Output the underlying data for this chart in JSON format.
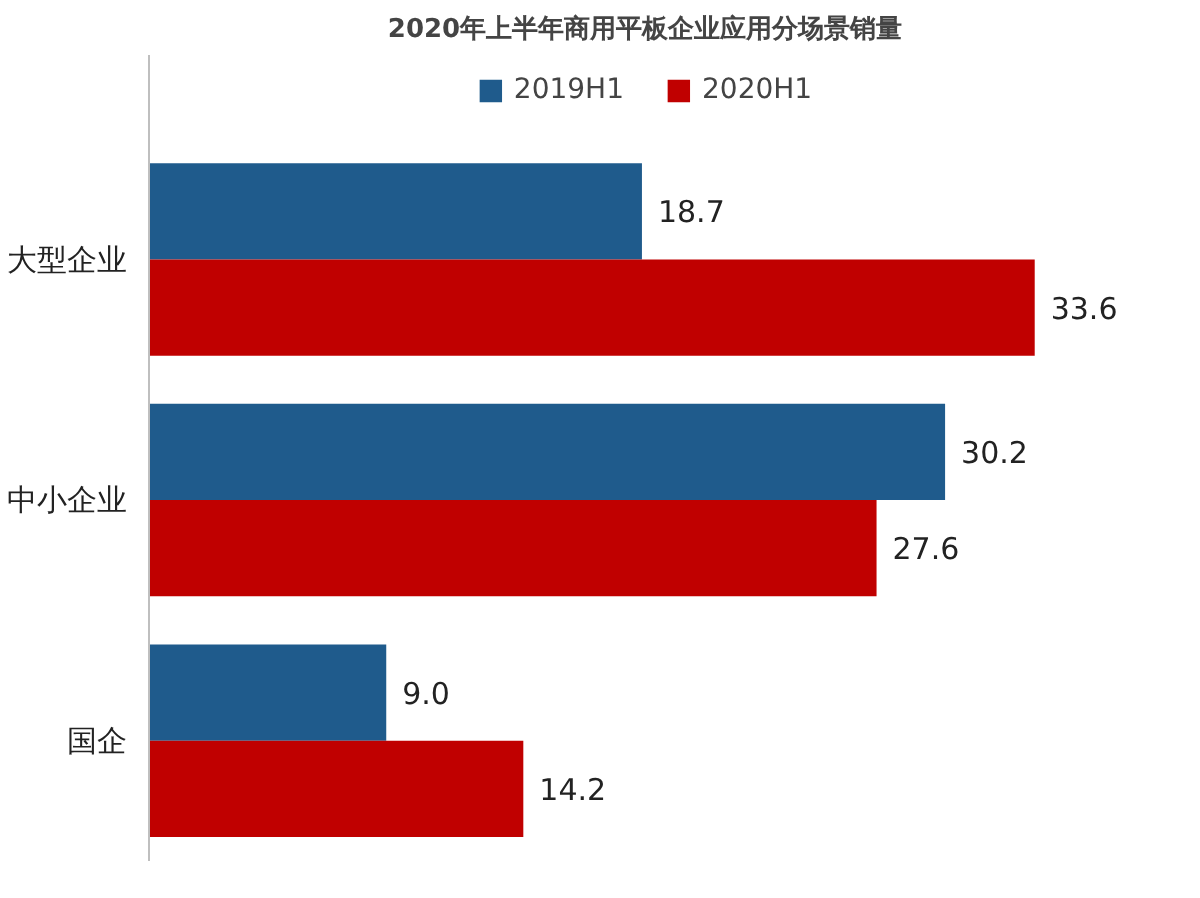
{
  "chart_data": {
    "type": "bar",
    "orientation": "horizontal",
    "title": "2020年上半年商用平板企业应用分场景销量",
    "categories": [
      "大型企业",
      "中小企业",
      "国企"
    ],
    "series": [
      {
        "name": "2019H1",
        "color": "#1f5b8c",
        "values": [
          18.7,
          30.2,
          9.0
        ],
        "value_labels": [
          "18.7",
          "30.2",
          "9.0"
        ]
      },
      {
        "name": "2020H1",
        "color": "#c00000",
        "values": [
          33.6,
          27.6,
          14.2
        ],
        "value_labels": [
          "33.6",
          "27.6",
          "14.2"
        ]
      }
    ],
    "legend": "top",
    "grid": false,
    "tick_labels": "y"
  }
}
